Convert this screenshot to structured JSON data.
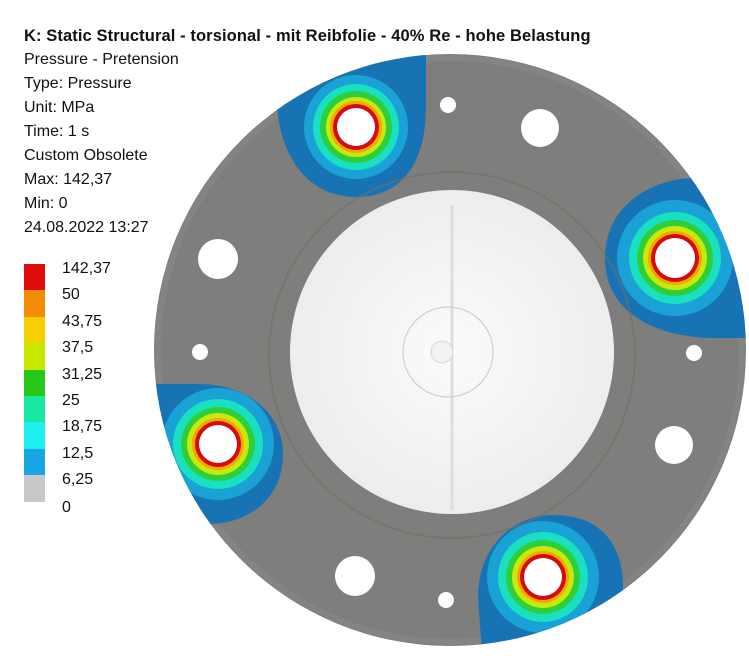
{
  "header": {
    "title": "K: Static Structural - torsional - mit Reibfolie - 40% Re - hohe Belastung",
    "lines": [
      "Pressure - Pretension",
      "Type: Pressure",
      "Unit: MPa",
      "Time: 1 s",
      "Custom Obsolete",
      "Max: 142,37",
      "Min: 0",
      "24.08.2022 13:27"
    ]
  },
  "legend": {
    "labels": [
      "142,37",
      "50",
      "43,75",
      "37,5",
      "31,25",
      "25",
      "18,75",
      "12,5",
      "6,25",
      "0"
    ],
    "colors": [
      "#e00b0b",
      "#f28c05",
      "#f5d000",
      "#c8e800",
      "#28c81a",
      "#19e8a0",
      "#1ef0f0",
      "#19a6e6",
      "#c8c8c8"
    ]
  },
  "colors": {
    "flange": "#7e7e7c",
    "bore": "#f7f7f7",
    "contact_blue": "#1873b4"
  }
}
